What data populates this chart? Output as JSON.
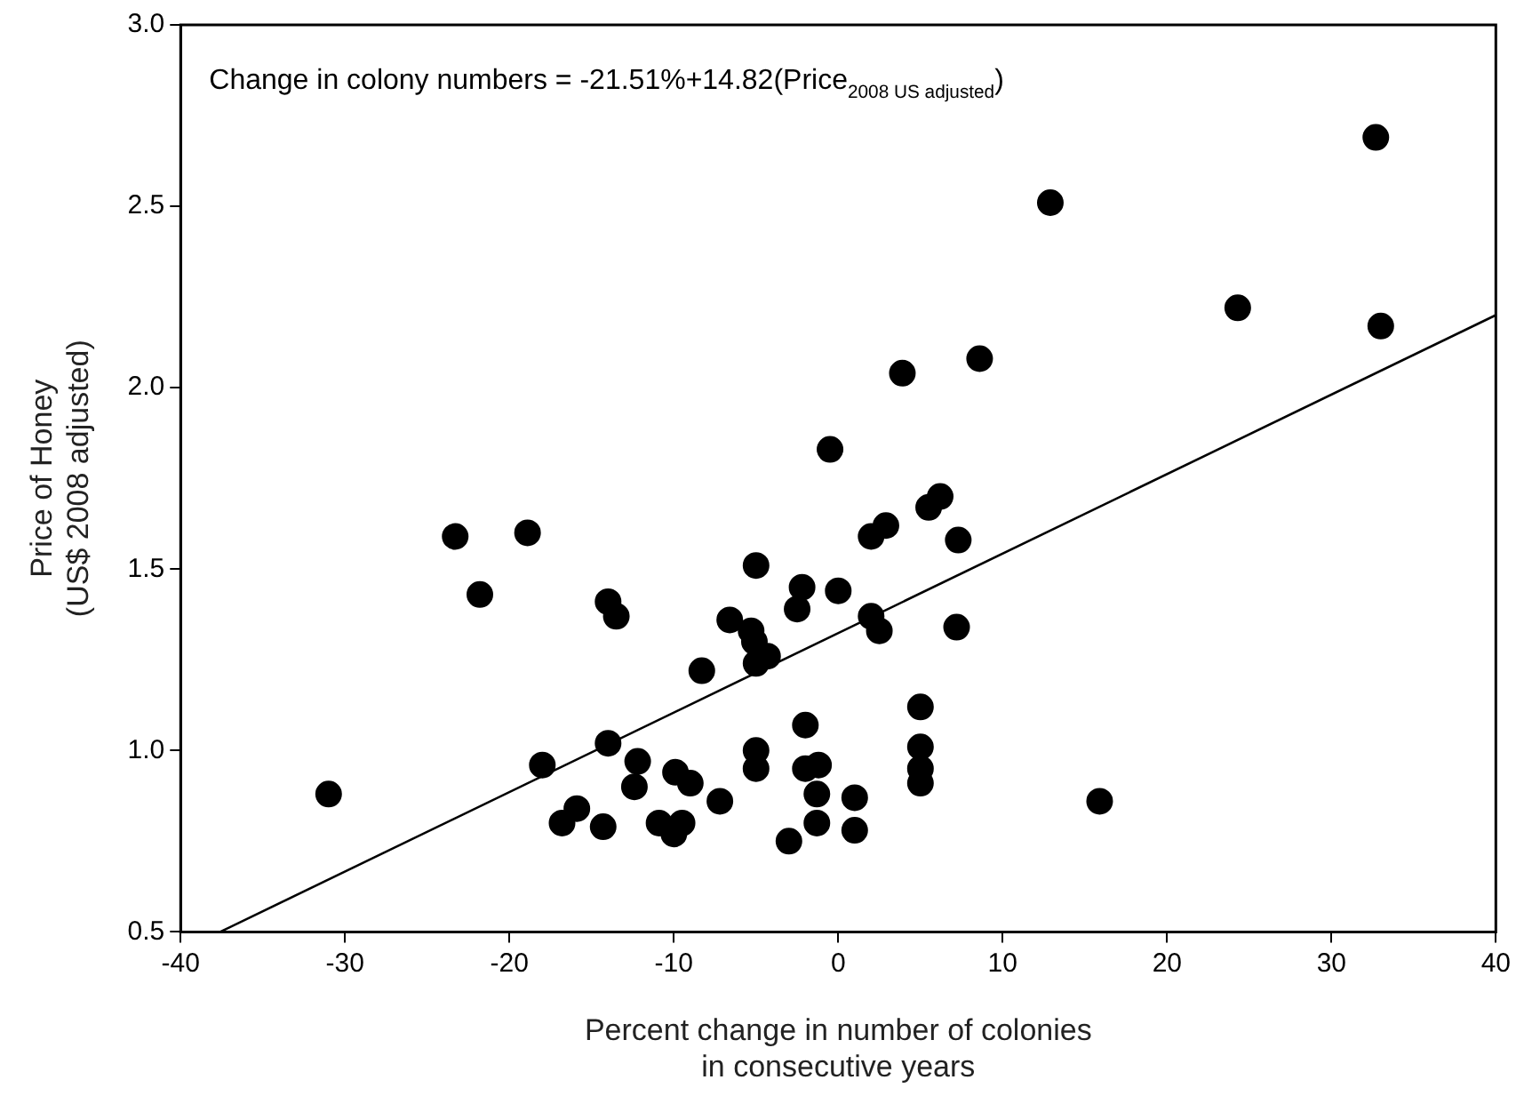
{
  "chart_data": {
    "type": "scatter",
    "xlabel": "Percent change in number of colonies\nin consecutive years",
    "ylabel": "Price of Honey\n(US$ 2008 adjusted)",
    "annotations": [
      "Change in colony numbers = -21.51%+14.82(Price$_{2008 US adjusted}$)"
    ],
    "xlim": [
      -40,
      40
    ],
    "xticks": [
      -40,
      -30,
      -20,
      -10,
      0,
      10,
      20,
      30,
      40
    ],
    "ylim": [
      0.5,
      3.0
    ],
    "yticks": [
      {
        "value": 0.5,
        "label": "0.5"
      },
      {
        "value": 1.0,
        "label": "1.0"
      },
      {
        "value": 1.5,
        "label": "1.5"
      },
      {
        "value": 2.0,
        "label": "2.0"
      },
      {
        "value": 2.5,
        "label": "2.5"
      },
      {
        "value": 3.0,
        "label": "3.0"
      }
    ],
    "grid": false,
    "legend": false,
    "marker": "circle",
    "series": [
      {
        "color": "#000000",
        "x": [
          -31,
          -23.3,
          -21.8,
          -18.9,
          -18,
          -16.8,
          -15.9,
          -14.3,
          -14,
          -14,
          -13.5,
          -12.4,
          -12.2,
          -10.9,
          -10,
          -9.9,
          -9.5,
          -9,
          -8.3,
          -7.2,
          -6.6,
          -5.3,
          -5.1,
          -5,
          -5,
          -4.3,
          -5,
          -5,
          -3,
          -2.5,
          -2.2,
          -2,
          -2,
          -1.3,
          -1.2,
          -1.3,
          -0.5,
          0,
          1,
          1,
          2,
          2,
          2.5,
          2.9,
          3.9,
          5,
          5,
          5,
          5,
          5.5,
          6.2,
          7.3,
          7.2,
          8.6,
          12.9,
          15.9,
          24.3,
          32.7,
          33
        ],
        "values": [
          0.88,
          1.59,
          1.43,
          1.6,
          0.96,
          0.8,
          0.84,
          0.79,
          1.41,
          1.02,
          1.37,
          0.9,
          0.97,
          0.8,
          0.77,
          0.94,
          0.8,
          0.91,
          1.22,
          0.86,
          1.36,
          1.33,
          1.3,
          1.51,
          1.24,
          1.26,
          1.0,
          0.95,
          0.75,
          1.39,
          1.45,
          1.07,
          0.95,
          0.88,
          0.96,
          0.8,
          1.83,
          1.44,
          0.87,
          0.78,
          1.59,
          1.37,
          1.33,
          1.62,
          2.04,
          1.12,
          1.01,
          0.95,
          0.91,
          1.67,
          1.7,
          1.58,
          1.34,
          2.08,
          2.51,
          0.86,
          2.22,
          2.69,
          2.17
        ]
      },
      {
        "type": "line",
        "color": "#000000",
        "marker": "none",
        "line_style": "solid",
        "x": [
          -37.6,
          40
        ],
        "values": [
          0.5,
          2.2
        ]
      }
    ]
  }
}
